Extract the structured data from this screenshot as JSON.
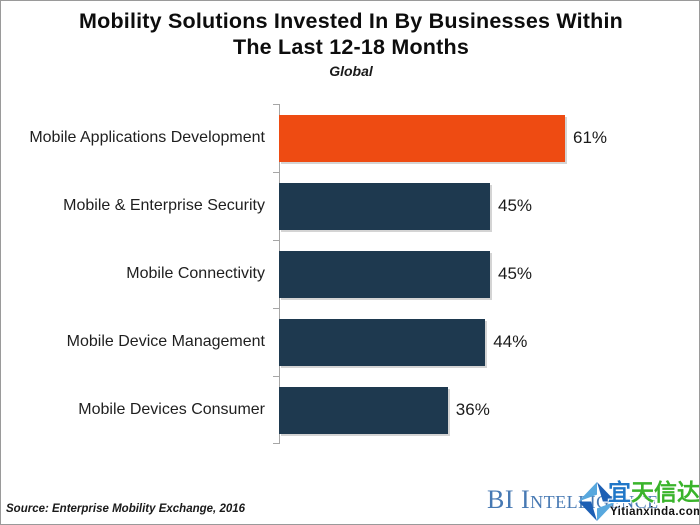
{
  "header": {
    "title_line1": "Mobility Solutions Invested In By Businesses Within",
    "title_line2": "The Last 12-18 Months",
    "subtitle": "Global"
  },
  "chart_data": {
    "type": "bar",
    "orientation": "horizontal",
    "title": "Mobility Solutions Invested In By Businesses Within The Last 12-18 Months",
    "subtitle": "Global",
    "categories": [
      "Mobile Applications Development",
      "Mobile & Enterprise Security",
      "Mobile Connectivity",
      "Mobile Device Management",
      "Mobile Devices Consumer"
    ],
    "values": [
      61,
      45,
      45,
      44,
      36
    ],
    "value_labels": [
      "61%",
      "45%",
      "45%",
      "44%",
      "36%"
    ],
    "unit": "percent",
    "xlim": [
      0,
      90
    ],
    "grid": false,
    "legend": false,
    "highlight_index": 0,
    "colors": {
      "highlight": "#ee4b12",
      "default": "#1e394f",
      "axis": "#a6a6a6"
    }
  },
  "footer": {
    "source": "Source: Enterprise Mobility Exchange, 2016",
    "logo_text": "BI Intelligence",
    "logo_color": "#4779b3"
  },
  "watermark": {
    "cn_first_char": "宜",
    "cn_rest": "天信达",
    "domain": "Yitianxinda.com",
    "colors": {
      "blue": "#2077c8",
      "green": "#3ab42b",
      "icon_dark": "#1d5fb4",
      "icon_light": "#58a8de"
    }
  }
}
